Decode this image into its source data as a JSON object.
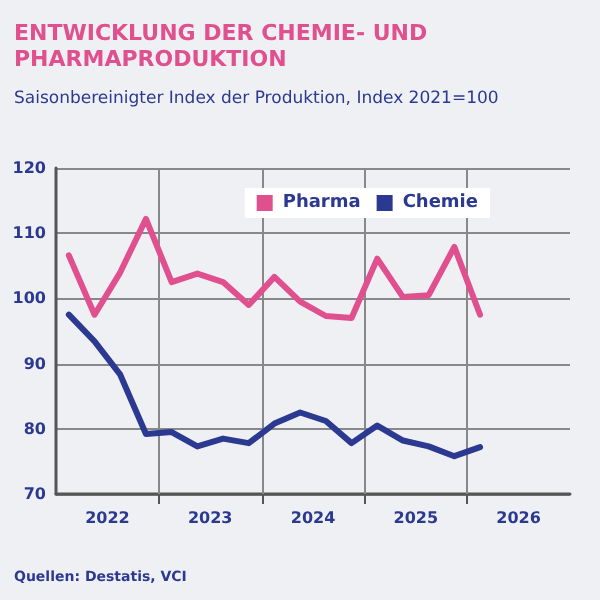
{
  "chart_data": {
    "type": "line",
    "title": "ENTWICKLUNG DER CHEMIE- UND\nPHARMAPRODUKTION",
    "subtitle": "Saisonbereinigter Index der Produktion, Index 2021=100",
    "annotations": [
      "Quellen: Destatis, VCI"
    ],
    "x": [
      2022.125,
      2022.375,
      2022.625,
      2022.875,
      2023.125,
      2023.375,
      2023.625,
      2023.875,
      2024.125,
      2024.375,
      2024.625,
      2024.875,
      2025.125,
      2025.375,
      2025.625,
      2025.875,
      2026.125
    ],
    "series": [
      {
        "name": "Pharma",
        "color": "#e0508f",
        "values": [
          106.6,
          97.5,
          104,
          112.2,
          102.5,
          103.8,
          102.5,
          99,
          103.3,
          99.5,
          97.3,
          97,
          106.1,
          100.2,
          100.5,
          107.9,
          97.5
        ]
      },
      {
        "name": "Chemie",
        "color": "#2b3990",
        "values": [
          97.5,
          93.4,
          88.3,
          79.2,
          79.5,
          77.3,
          78.5,
          77.8,
          80.8,
          82.5,
          81.2,
          77.8,
          80.5,
          78.2,
          77.3,
          75.8,
          77.2
        ]
      }
    ],
    "xlim": [
      2022,
      2027
    ],
    "xticks": [
      {
        "value": 2022.5,
        "label": "2022"
      },
      {
        "value": 2023,
        "label": null
      },
      {
        "value": 2023.5,
        "label": "2023"
      },
      {
        "value": 2024,
        "label": null
      },
      {
        "value": 2024.5,
        "label": "2024"
      },
      {
        "value": 2025,
        "label": null
      },
      {
        "value": 2025.5,
        "label": "2025"
      },
      {
        "value": 2026,
        "label": null
      },
      {
        "value": 2026.5,
        "label": "2026"
      }
    ],
    "ylim": [
      70,
      120
    ],
    "yticks": [
      70,
      80,
      90,
      100,
      110,
      120
    ],
    "grid": true,
    "legend": "top right",
    "marker": "none",
    "line_style": "solid"
  }
}
